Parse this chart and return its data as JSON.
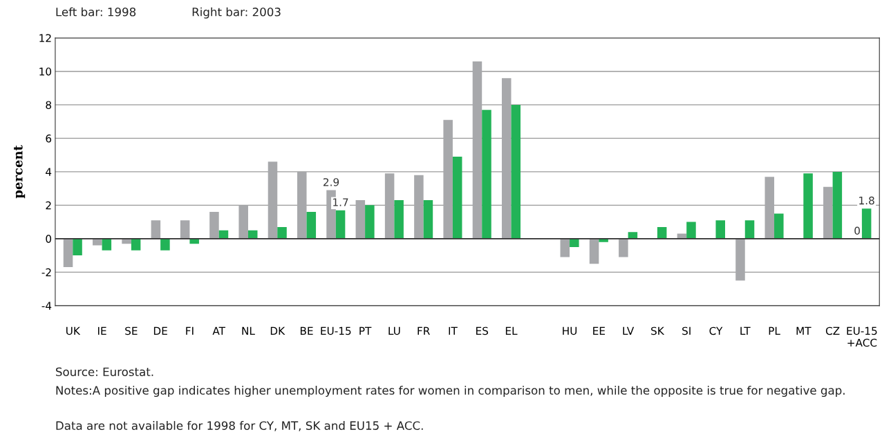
{
  "chart_data": {
    "type": "bar",
    "ylabel": "percent",
    "categories": [
      "UK",
      "IE",
      "SE",
      "DE",
      "FI",
      "AT",
      "NL",
      "DK",
      "BE",
      "EU-15",
      "PT",
      "LU",
      "FR",
      "IT",
      "ES",
      "EL",
      null,
      "HU",
      "EE",
      "LV",
      "SK",
      "SI",
      "CY",
      "LT",
      "PL",
      "MT",
      "CZ",
      "EU-15\n+ACC"
    ],
    "series": [
      {
        "color": "#a7a8ab",
        "values": [
          -1.7,
          -0.4,
          -0.3,
          1.1,
          1.1,
          1.6,
          2.0,
          4.6,
          4.0,
          2.9,
          2.3,
          3.9,
          3.8,
          7.1,
          10.6,
          9.6,
          null,
          -1.1,
          -1.5,
          -1.1,
          null,
          0.3,
          null,
          -2.5,
          3.7,
          null,
          3.1,
          0
        ],
        "value_labels": [
          null,
          null,
          null,
          null,
          null,
          null,
          null,
          null,
          null,
          "2.9",
          null,
          null,
          null,
          null,
          null,
          null,
          null,
          null,
          null,
          null,
          null,
          null,
          null,
          null,
          null,
          null,
          null,
          "0"
        ]
      },
      {
        "color": "#22b357",
        "values": [
          -1.0,
          -0.7,
          -0.7,
          -0.7,
          -0.3,
          0.5,
          0.5,
          0.7,
          1.6,
          1.7,
          2.0,
          2.3,
          2.3,
          4.9,
          7.7,
          8.0,
          null,
          -0.5,
          -0.2,
          0.4,
          0.7,
          1.0,
          1.1,
          1.1,
          1.5,
          3.9,
          4.0,
          1.8
        ],
        "value_labels": [
          null,
          null,
          null,
          null,
          null,
          null,
          null,
          null,
          null,
          "1.7",
          null,
          null,
          null,
          null,
          null,
          null,
          null,
          null,
          null,
          null,
          null,
          null,
          null,
          null,
          null,
          null,
          null,
          "1.8"
        ]
      }
    ],
    "ylim": [
      -4,
      12
    ],
    "yticks": [
      -4,
      -2,
      0,
      2,
      4,
      6,
      8,
      10,
      12
    ],
    "grid": "y",
    "ref_lines": [
      {
        "axis": "y",
        "value": 0,
        "color": "#333333"
      }
    ],
    "annotations": [
      "Left bar: 1998",
      "Right bar: 2003",
      "Source: Eurostat.",
      "Notes:A positive gap indicates higher unemployment rates for women in comparison to men, while the opposite is true for negative gap.",
      "Data are not available for 1998 for CY, MT, SK and EU15 + ACC."
    ]
  }
}
